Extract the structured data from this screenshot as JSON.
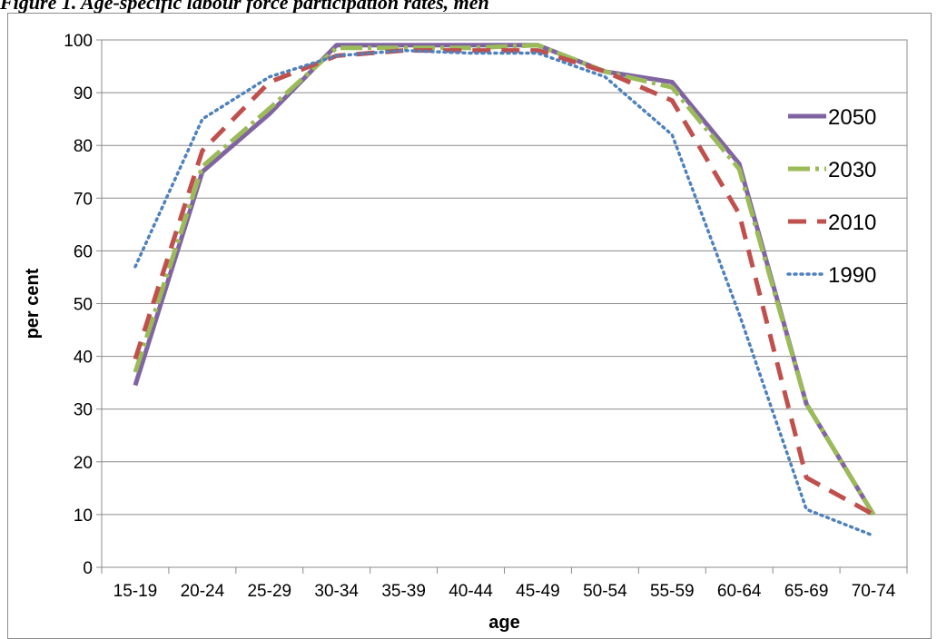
{
  "caption": "Figure 1. Age-specific labour force participation rates, men",
  "chart_data": {
    "type": "line",
    "title": "",
    "xlabel": "age",
    "ylabel": "per cent",
    "ylim": [
      0,
      100
    ],
    "yticks": [
      0,
      10,
      20,
      30,
      40,
      50,
      60,
      70,
      80,
      90,
      100
    ],
    "grid": "horizontal",
    "legend_placement": "right",
    "categories": [
      "15-19",
      "20-24",
      "25-29",
      "30-34",
      "35-39",
      "40-44",
      "45-49",
      "50-54",
      "55-59",
      "60-64",
      "65-69",
      "70-74"
    ],
    "series": [
      {
        "name": "2050",
        "color": "#8064a2",
        "style": "solid",
        "values": [
          34.5,
          75,
          86,
          99,
          99,
          99,
          99,
          94,
          92,
          76.5,
          31,
          10
        ]
      },
      {
        "name": "2030",
        "color": "#9bbb59",
        "style": "dashdot",
        "values": [
          37,
          76,
          87,
          98.5,
          98.5,
          98.5,
          99,
          94,
          91,
          75.5,
          31,
          10
        ]
      },
      {
        "name": "2010",
        "color": "#c0504d",
        "style": "dashed",
        "values": [
          39.5,
          79,
          92,
          97,
          98,
          98,
          98,
          94,
          88.5,
          67,
          17,
          10
        ]
      },
      {
        "name": "1990",
        "color": "#4f81bd",
        "style": "dotted",
        "values": [
          57,
          85,
          93,
          97,
          98,
          97.5,
          97.5,
          93,
          82,
          48,
          11,
          6
        ]
      }
    ]
  }
}
